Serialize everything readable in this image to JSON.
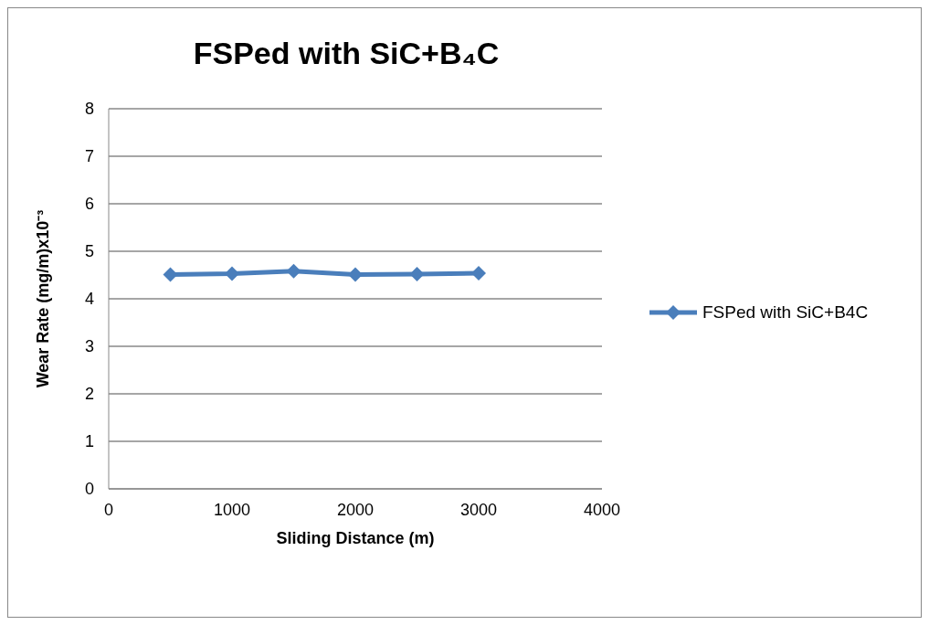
{
  "chart_data": {
    "type": "line",
    "title": "FSPed with SiC+B₄C",
    "xlabel": "Sliding Distance (m)",
    "ylabel": "Wear Rate (mg/m)x10⁻³",
    "x": [
      500,
      1000,
      1500,
      2000,
      2500,
      3000
    ],
    "series": [
      {
        "name": "FSPed with SiC+B4C",
        "color": "#4a7ebb",
        "values": [
          4.51,
          4.53,
          4.58,
          4.51,
          4.52,
          4.54
        ]
      }
    ],
    "xlim": [
      0,
      4000
    ],
    "xticks": [
      0,
      1000,
      2000,
      3000,
      4000
    ],
    "ylim": [
      0,
      8
    ],
    "yticks": [
      0,
      1,
      2,
      3,
      4,
      5,
      6,
      7,
      8
    ],
    "grid": "y",
    "legend": "right",
    "marker": "diamond",
    "line_style": "solid"
  }
}
